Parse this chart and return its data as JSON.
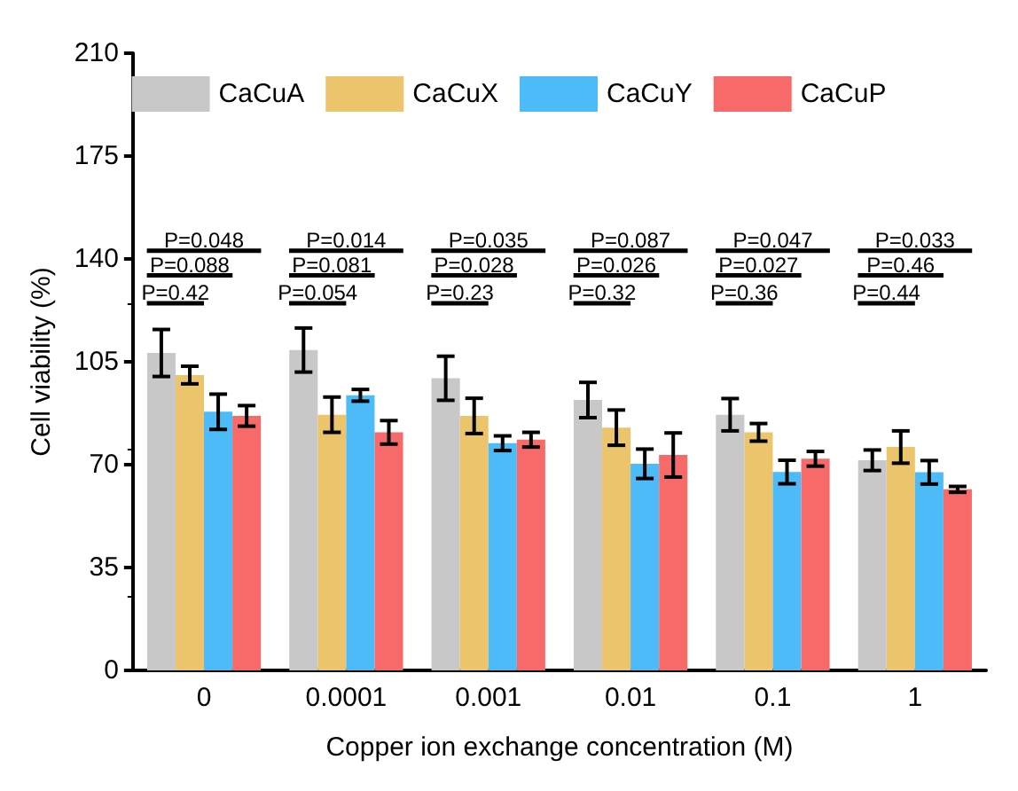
{
  "chart_data": {
    "type": "bar",
    "xlabel": "Copper ion exchange concentration (M)",
    "ylabel": "Cell viability (%)",
    "categories": [
      "0",
      "0.0001",
      "0.001",
      "0.01",
      "0.1",
      "1"
    ],
    "series": [
      {
        "name": "CaCuA",
        "color": "#c8c8c8",
        "values": [
          108,
          109,
          99.4,
          92,
          87,
          71.5
        ],
        "errors": [
          8,
          7.5,
          7.5,
          6,
          5.5,
          3.5
        ]
      },
      {
        "name": "CaCuX",
        "color": "#ecc46b",
        "values": [
          100.5,
          87,
          86.6,
          82.6,
          81,
          76
        ],
        "errors": [
          3,
          6,
          6,
          6,
          3,
          5.5
        ]
      },
      {
        "name": "CaCuY",
        "color": "#4dbbf8",
        "values": [
          88,
          93.6,
          77.3,
          70.3,
          67.5,
          67.4
        ],
        "errors": [
          6,
          2,
          2.5,
          5,
          4,
          4
        ]
      },
      {
        "name": "CaCuP",
        "color": "#f86a6a",
        "values": [
          86.6,
          81,
          78.5,
          73.3,
          72,
          61.6
        ],
        "errors": [
          3.5,
          4,
          2.5,
          7.5,
          2.5,
          1
        ]
      }
    ],
    "ylim": [
      0,
      210
    ],
    "yticks": [
      0,
      35,
      70,
      105,
      140,
      175,
      210
    ],
    "grid": false,
    "legend": "top",
    "annotations": [
      "P=0.048",
      "P=0.088",
      "P=0.42",
      "P=0.014",
      "P=0.081",
      "P=0.054",
      "P=0.035",
      "P=0.028",
      "P=0.23",
      "P=0.087",
      "P=0.026",
      "P=0.32",
      "P=0.047",
      "P=0.027",
      "P=0.36",
      "P=0.033",
      "P=0.46",
      "P=0.44"
    ]
  }
}
